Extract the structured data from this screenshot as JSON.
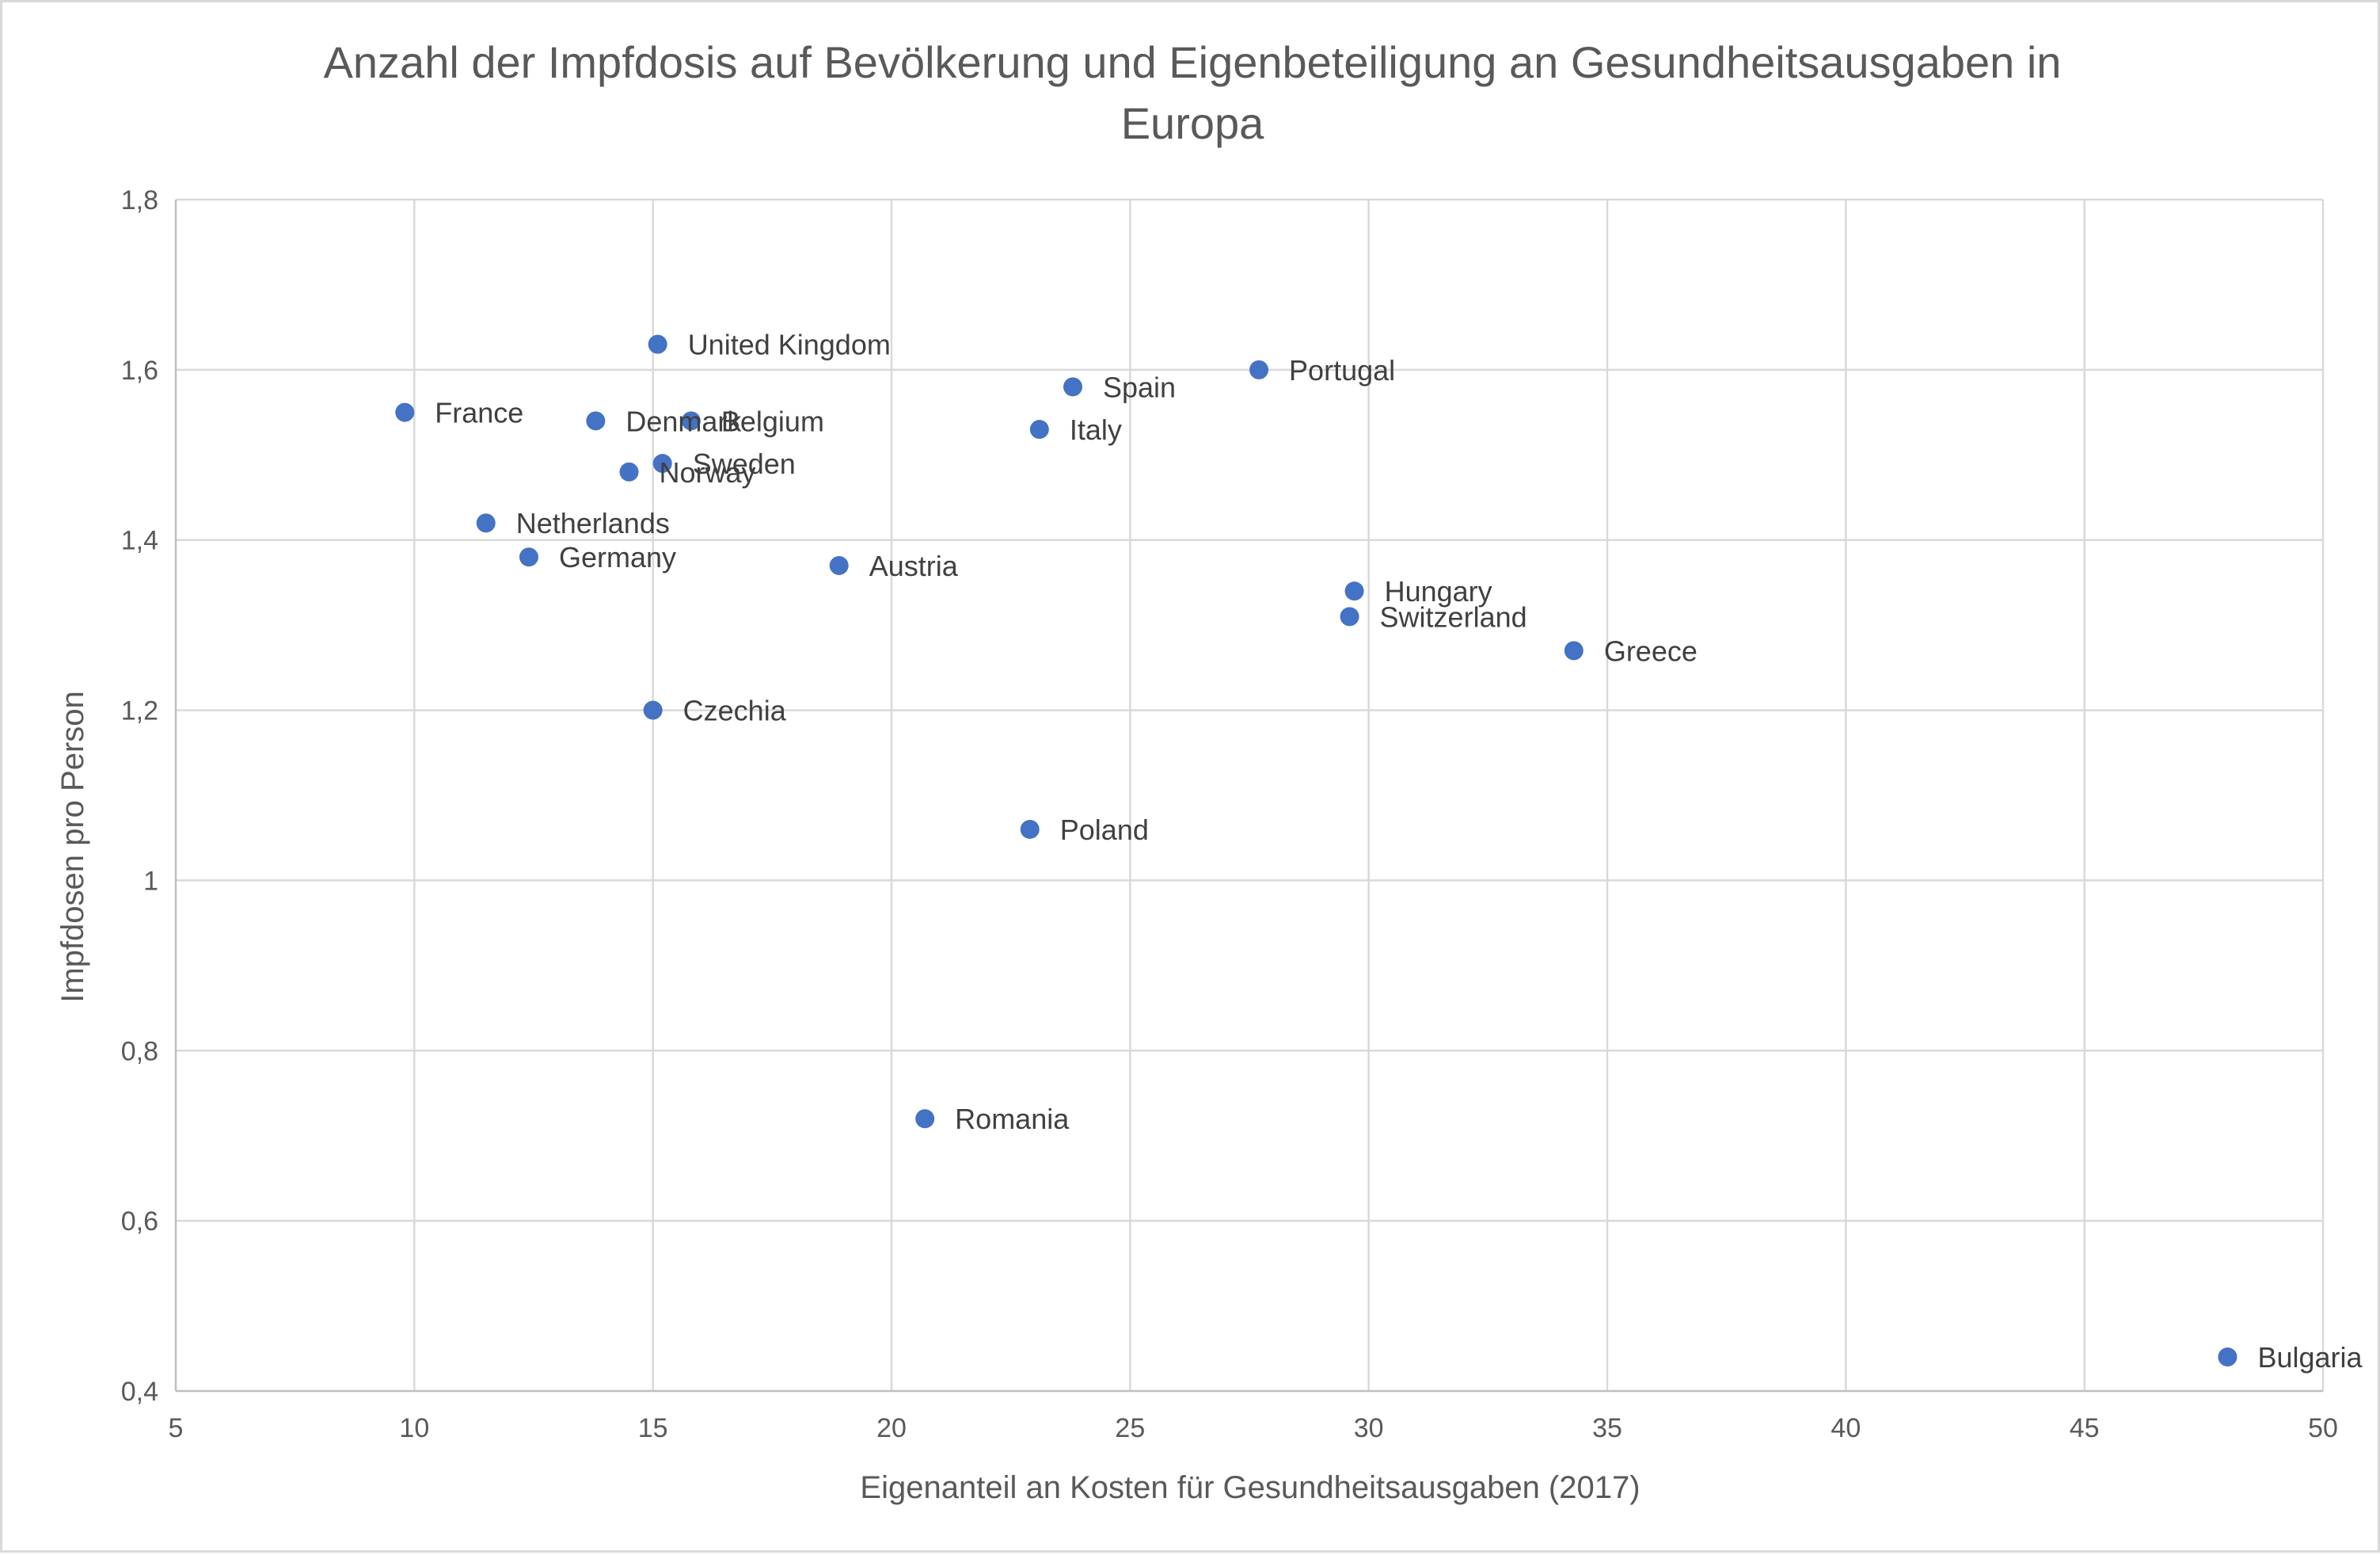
{
  "chart_data": {
    "type": "scatter",
    "title_lines": [
      "Anzahl der Impfdosis auf Bevölkerung und Eigenbeteiligung an Gesundheitsausgaben in",
      "Europa"
    ],
    "xlabel": "Eigenanteil an Kosten für Gesundheitsausgaben (2017)",
    "ylabel": "Impfdosen pro Person",
    "xlim": [
      5,
      50
    ],
    "ylim": [
      0.4,
      1.8
    ],
    "x_ticks": [
      {
        "value": 5,
        "label": "5"
      },
      {
        "value": 10,
        "label": "10"
      },
      {
        "value": 15,
        "label": "15"
      },
      {
        "value": 20,
        "label": "20"
      },
      {
        "value": 25,
        "label": "25"
      },
      {
        "value": 30,
        "label": "30"
      },
      {
        "value": 35,
        "label": "35"
      },
      {
        "value": 40,
        "label": "40"
      },
      {
        "value": 45,
        "label": "45"
      },
      {
        "value": 50,
        "label": "50"
      }
    ],
    "y_ticks": [
      {
        "value": 0.4,
        "label": "0,4"
      },
      {
        "value": 0.6,
        "label": "0,6"
      },
      {
        "value": 0.8,
        "label": "0,8"
      },
      {
        "value": 1.0,
        "label": "1"
      },
      {
        "value": 1.2,
        "label": "1,2"
      },
      {
        "value": 1.4,
        "label": "1,4"
      },
      {
        "value": 1.6,
        "label": "1,6"
      },
      {
        "value": 1.8,
        "label": "1,8"
      }
    ],
    "grid": true,
    "marker_color": "#4472c4",
    "points": [
      {
        "label": "France",
        "x": 9.8,
        "y": 1.55
      },
      {
        "label": "Netherlands",
        "x": 11.5,
        "y": 1.42
      },
      {
        "label": "Germany",
        "x": 12.4,
        "y": 1.38
      },
      {
        "label": "Denmark",
        "x": 13.8,
        "y": 1.54
      },
      {
        "label": "Norway",
        "x": 14.5,
        "y": 1.48
      },
      {
        "label": "Czechia",
        "x": 15.0,
        "y": 1.2
      },
      {
        "label": "United Kingdom",
        "x": 15.1,
        "y": 1.63
      },
      {
        "label": "Sweden",
        "x": 15.2,
        "y": 1.49
      },
      {
        "label": "Belgium",
        "x": 15.8,
        "y": 1.54
      },
      {
        "label": "Austria",
        "x": 18.9,
        "y": 1.37
      },
      {
        "label": "Romania",
        "x": 20.7,
        "y": 0.72
      },
      {
        "label": "Poland",
        "x": 22.9,
        "y": 1.06
      },
      {
        "label": "Italy",
        "x": 23.1,
        "y": 1.53
      },
      {
        "label": "Spain",
        "x": 23.8,
        "y": 1.58
      },
      {
        "label": "Portugal",
        "x": 27.7,
        "y": 1.6
      },
      {
        "label": "Switzerland",
        "x": 29.6,
        "y": 1.31
      },
      {
        "label": "Hungary",
        "x": 29.7,
        "y": 1.34
      },
      {
        "label": "Greece",
        "x": 34.3,
        "y": 1.27
      },
      {
        "label": "Bulgaria",
        "x": 48.0,
        "y": 0.44
      }
    ]
  }
}
